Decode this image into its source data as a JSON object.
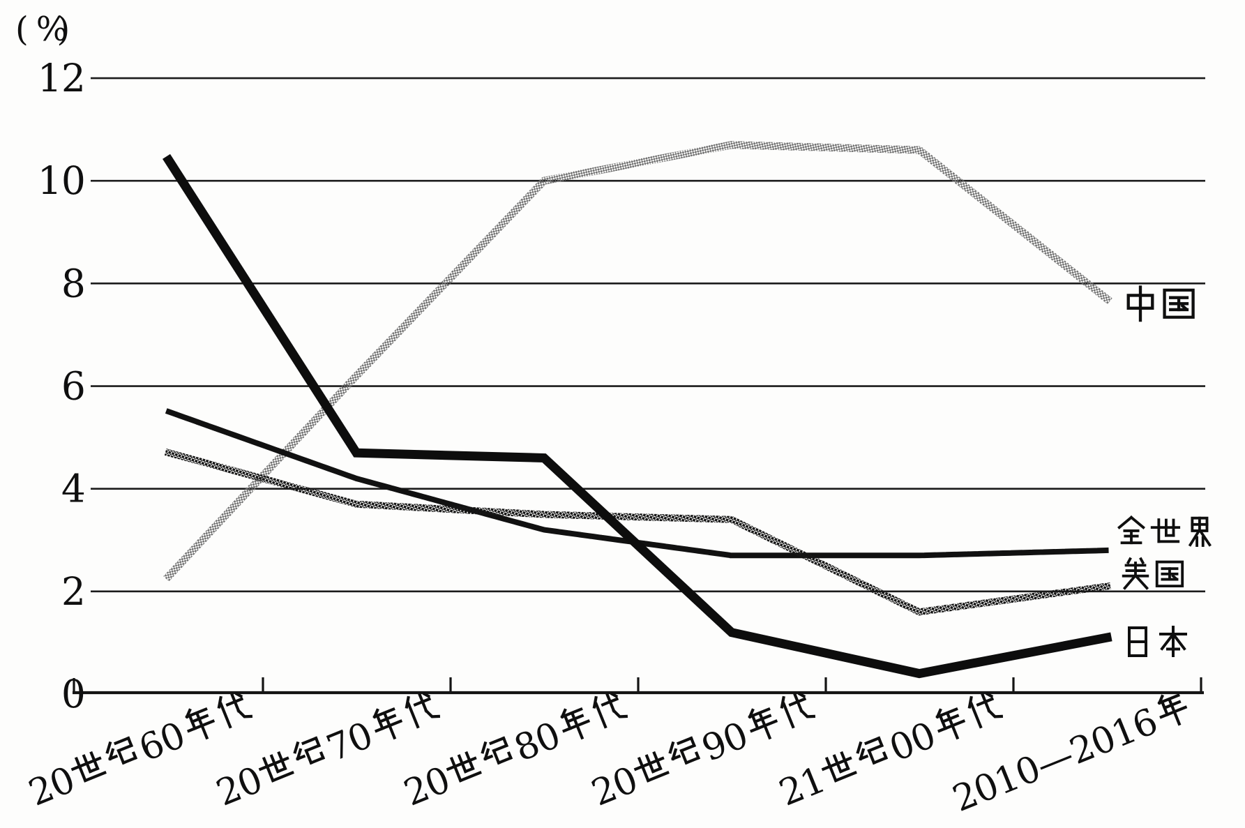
{
  "chart_data": {
    "type": "line",
    "title": "",
    "y_axis_unit_label": "(%)",
    "xlabel": "",
    "ylabel": "",
    "ylim": [
      0,
      12
    ],
    "y_ticks": [
      12,
      10,
      8,
      6,
      4,
      2,
      0
    ],
    "grid": "horizontal gridlines every 2 units",
    "legend_position": "right edge, beside each line end",
    "categories": [
      "20世纪60年代",
      "20世纪70年代",
      "20世纪80年代",
      "20世纪90年代",
      "21世纪00年代",
      "2010—2016年"
    ],
    "series": [
      {
        "name": "中国",
        "key": "china",
        "values": [
          2.3,
          6.2,
          10.0,
          10.7,
          10.6,
          7.7
        ],
        "line_style": "thick halftone light-gray",
        "color": "#a8a8a8"
      },
      {
        "name": "全世界",
        "key": "world",
        "values": [
          5.5,
          4.2,
          3.2,
          2.7,
          2.7,
          2.8
        ],
        "line_style": "dotted black",
        "color": "#111111"
      },
      {
        "name": "美国",
        "key": "usa",
        "values": [
          4.7,
          3.7,
          3.5,
          3.4,
          1.6,
          2.1
        ],
        "line_style": "thick halftone dark-gray",
        "color": "#555555"
      },
      {
        "name": "日本",
        "key": "japan",
        "values": [
          10.4,
          4.7,
          4.6,
          1.2,
          0.4,
          1.1
        ],
        "line_style": "thick solid black",
        "color": "#0d0d0d"
      }
    ]
  }
}
